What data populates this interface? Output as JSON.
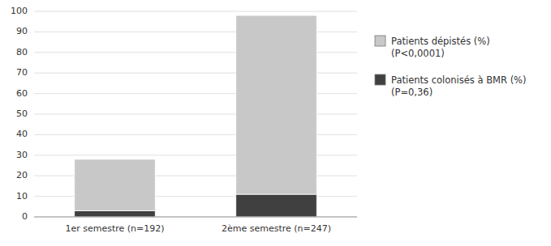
{
  "chart_data": {
    "type": "bar",
    "stacked": true,
    "categories": [
      "1er semestre (n=192)",
      "2ème semestre (n=247)"
    ],
    "series": [
      {
        "name": "Patients colonisés à BMR (%)\n(P=0,36)",
        "color": "#404040",
        "values": [
          3,
          11
        ]
      },
      {
        "name": "Patients dépistés (%)\n(P<0,0001)",
        "color": "#c8c8c8",
        "values": [
          25,
          87
        ]
      }
    ],
    "ylim": [
      0,
      100
    ],
    "yticks": [
      0,
      10,
      20,
      30,
      40,
      50,
      60,
      70,
      80,
      90,
      100
    ],
    "grid": true,
    "legend": "right"
  }
}
